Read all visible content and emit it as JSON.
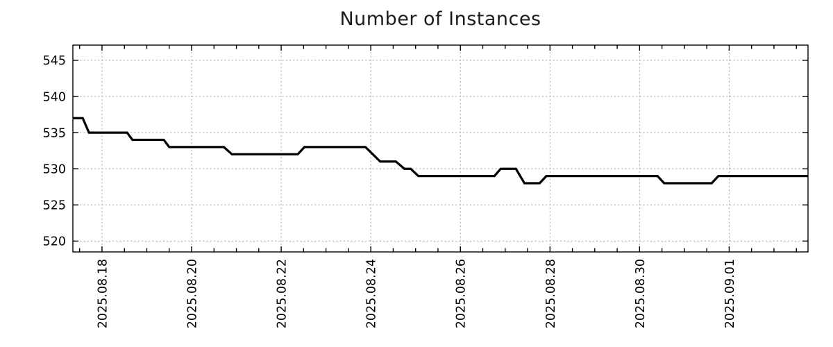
{
  "title": "Number of Instances",
  "chart_data": {
    "type": "line",
    "title": "Number of Instances",
    "grid": true,
    "legend": "none",
    "line_color": "#000000",
    "grid_color": "#a0a0a0",
    "axis_color": "#000000",
    "text_color": "#000000",
    "ylim": [
      518.5,
      547.1
    ],
    "xlim_days": [
      -0.65,
      15.76
    ],
    "y_ticks": [
      520,
      525,
      530,
      535,
      540,
      545
    ],
    "x_ticks": [
      {
        "label": "2025.08.18",
        "day": 0
      },
      {
        "label": "2025.08.20",
        "day": 2
      },
      {
        "label": "2025.08.22",
        "day": 4
      },
      {
        "label": "2025.08.24",
        "day": 6
      },
      {
        "label": "2025.08.26",
        "day": 8
      },
      {
        "label": "2025.08.28",
        "day": 10
      },
      {
        "label": "2025.08.30",
        "day": 12
      },
      {
        "label": "2025.09.01",
        "day": 14
      }
    ],
    "x_minor_step_days": 0.5,
    "x_unit": "days since 2025.08.18 00:00",
    "ylabel": "",
    "xlabel": "",
    "points": [
      [
        -0.65,
        537
      ],
      [
        -0.43,
        537
      ],
      [
        -0.29,
        535
      ],
      [
        0.56,
        535
      ],
      [
        0.68,
        534
      ],
      [
        1.38,
        534
      ],
      [
        1.5,
        533
      ],
      [
        2.72,
        533
      ],
      [
        2.9,
        532
      ],
      [
        4.37,
        532
      ],
      [
        4.52,
        533
      ],
      [
        5.88,
        533
      ],
      [
        6.21,
        531
      ],
      [
        6.56,
        531
      ],
      [
        6.75,
        530
      ],
      [
        6.89,
        530
      ],
      [
        7.06,
        529
      ],
      [
        8.76,
        529
      ],
      [
        8.9,
        530
      ],
      [
        9.24,
        530
      ],
      [
        9.43,
        528
      ],
      [
        9.77,
        528
      ],
      [
        9.92,
        529
      ],
      [
        12.4,
        529
      ],
      [
        12.55,
        528
      ],
      [
        13.61,
        528
      ],
      [
        13.76,
        529
      ],
      [
        15.76,
        529
      ]
    ]
  }
}
